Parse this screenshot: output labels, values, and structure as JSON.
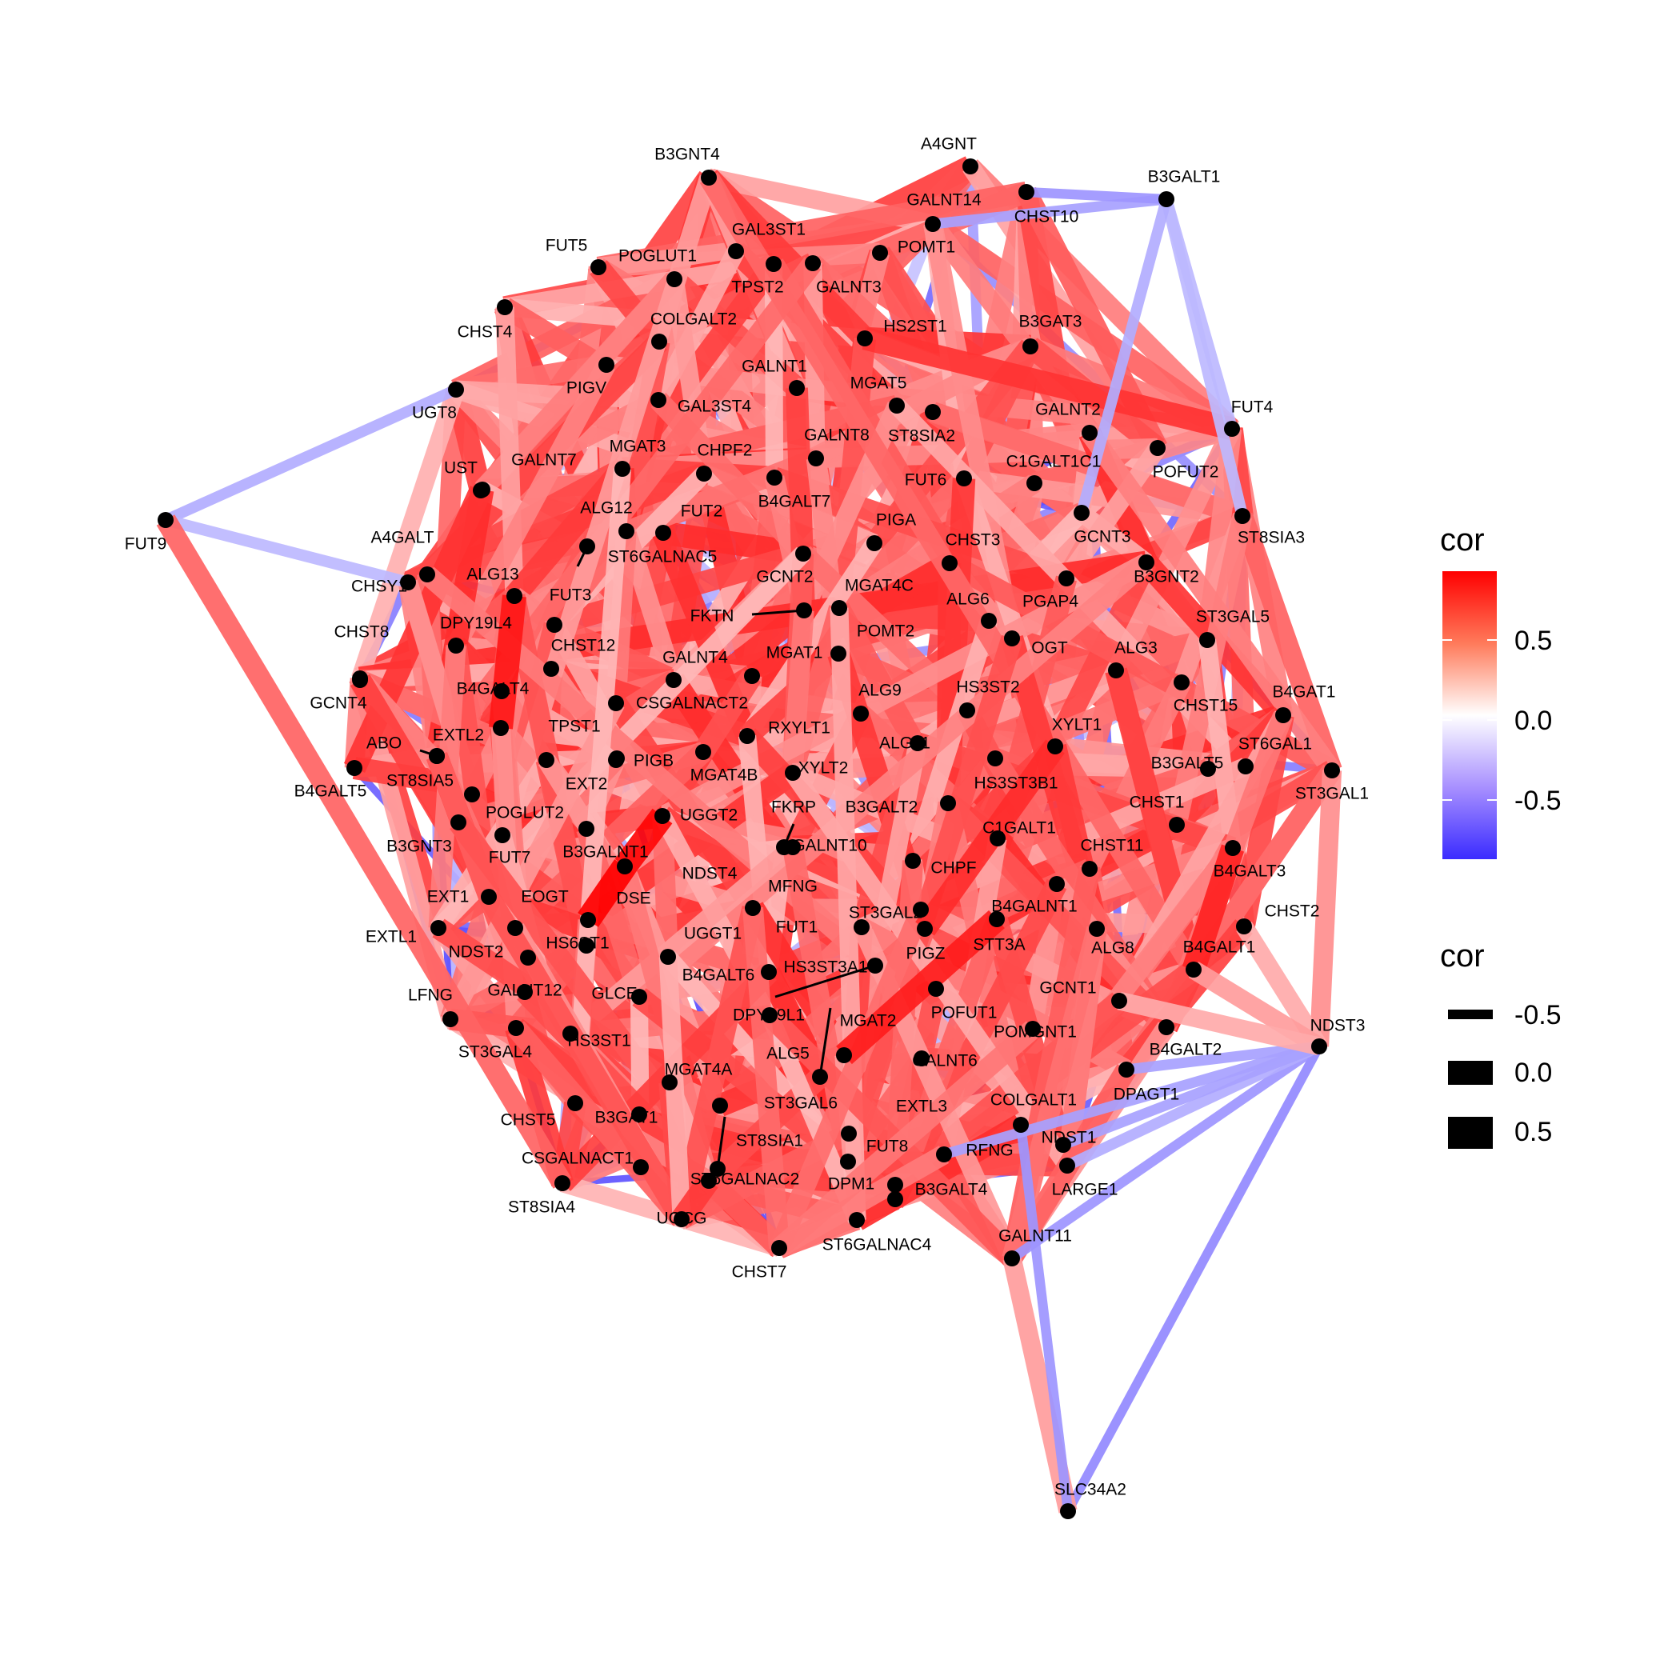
{
  "legend": {
    "color_title": "cor",
    "color_ticks": [
      "0.5",
      "0.0",
      "-0.5"
    ],
    "color_scale": {
      "low": "#3a2bff",
      "mid": "#ffffff",
      "high": "#ff0000",
      "range": [
        -0.9,
        0.9
      ]
    },
    "width_title": "cor",
    "width_ticks": [
      "-0.5",
      "0.0",
      "0.5"
    ]
  },
  "nodes": [
    "A4GNT",
    "B3GNT4",
    "B3GALT1",
    "GALNT14",
    "CHST10",
    "GAL3ST1",
    "FUT5",
    "POGLUT1",
    "POMT1",
    "TPST2",
    "GALNT3",
    "CHST4",
    "COLGALT2",
    "HS2ST1",
    "B3GAT3",
    "PIGV",
    "GALNT1",
    "MGAT5",
    "UGT8",
    "GAL3ST4",
    "GALNT2",
    "FUT4",
    "MGAT3",
    "CHPF2",
    "GALNT8",
    "ST8SIA2",
    "C1GALT1C1",
    "POFUT2",
    "GALNT7",
    "UST",
    "FUT6",
    "B4GALT7",
    "FUT9",
    "ALG12",
    "FUT2",
    "PIGA",
    "CHST3",
    "GCNT3",
    "ST8SIA3",
    "A4GALT",
    "ST6GALNAC5",
    "B3GNT2",
    "CHSY1",
    "ALG13",
    "FUT3",
    "GCNT2",
    "MGAT4C",
    "ALG6",
    "PGAP4",
    "FKTN",
    "DPY19L4",
    "POMT2",
    "CHST8",
    "OGT",
    "ST3GAL5",
    "ALG3",
    "CHST12",
    "GALNT4",
    "MGAT1",
    "B4GALT4",
    "CHST15",
    "B4GAT1",
    "GCNT4",
    "CSGALNACT2",
    "ALG9",
    "HS3ST2",
    "XYLT1",
    "TPST1",
    "RXYLT1",
    "EXTL2",
    "ABO",
    "ALG11",
    "ST6GAL1",
    "PIGB",
    "ST8SIA5",
    "B3GALT5",
    "B4GALT5",
    "XYLT2",
    "MGAT4B",
    "EXT2",
    "HS3ST3B1",
    "ST3GAL1",
    "CHST1",
    "FKRP",
    "B3GALT2",
    "POGLUT2",
    "UGGT2",
    "C1GALT1",
    "B3GNT3",
    "GALNT10",
    "CHST11",
    "B3GALNT1",
    "FUT7",
    "B4GALT3",
    "CHPF",
    "NDST4",
    "MFNG",
    "EXT1",
    "DSE",
    "EOGT",
    "B4GALNT1",
    "CHST2",
    "ST3GAL2",
    "FUT1",
    "EXTL1",
    "NDST2",
    "HS6ST1",
    "UGGT1",
    "STT3A",
    "PIGZ",
    "B4GALT1",
    "ALG8",
    "HS3ST3A1",
    "B4GALT6",
    "GCNT1",
    "GALNT12",
    "GLCE",
    "LFNG",
    "DPY19L1",
    "POFUT1",
    "NDST3",
    "MGAT2",
    "POMGNT1",
    "ST3GAL4",
    "HS3ST1",
    "B4GALT2",
    "ALG5",
    "GALNT6",
    "DPAGT1",
    "MGAT4A",
    "CHST5",
    "COLGALT1",
    "B3GAT1",
    "ST3GAL6",
    "EXTL3",
    "NDST1",
    "ST8SIA1",
    "RFNG",
    "CSGALNACT1",
    "FUT8",
    "DPM1",
    "ST6GALNAC2",
    "B3GALT4",
    "LARGE1",
    "ST8SIA4",
    "UGCG",
    "ST6GALNAC4",
    "GALNT11",
    "CHST7",
    "SLC34A2"
  ]
}
